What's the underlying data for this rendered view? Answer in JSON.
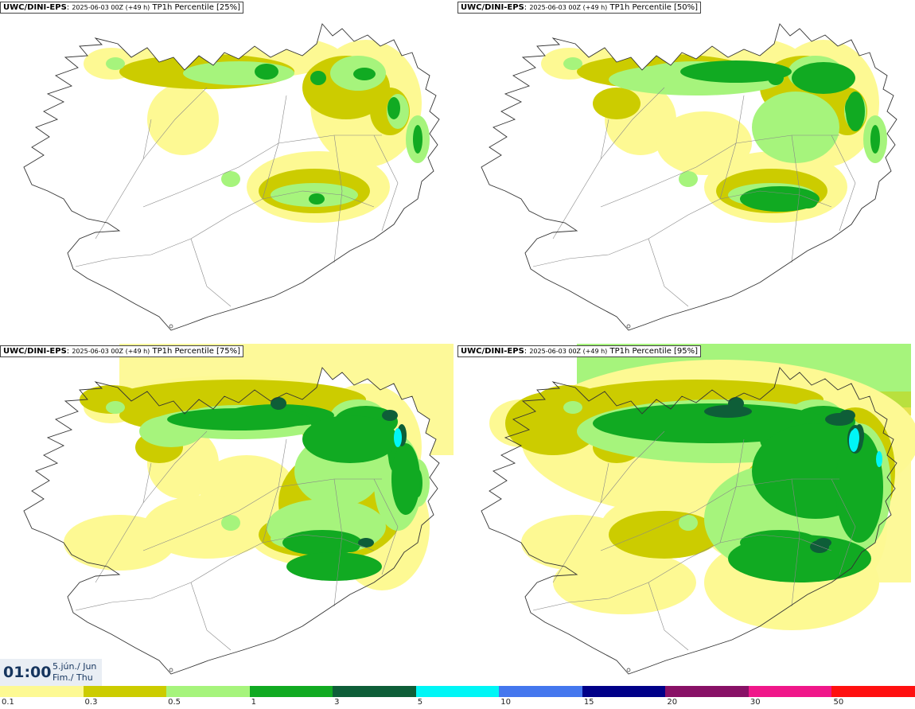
{
  "panels": [
    {
      "model": "UWC/DINI-EPS",
      "run": "2025-06-03 00Z (+49 h)",
      "field": "TP1h Percentile [25%]",
      "level": 0
    },
    {
      "model": "UWC/DINI-EPS",
      "run": "2025-06-03 00Z (+49 h)",
      "field": "TP1h Percentile [50%]",
      "level": 1
    },
    {
      "model": "UWC/DINI-EPS",
      "run": "2025-06-03 00Z (+49 h)",
      "field": "TP1h Percentile [75%]",
      "level": 2
    },
    {
      "model": "UWC/DINI-EPS",
      "run": "2025-06-03 00Z (+49 h)",
      "field": "TP1h Percentile [95%]",
      "level": 3
    }
  ],
  "valid_time": {
    "time": "01:00",
    "date_line1": "5.jún./ Jun",
    "date_line2": "Fim./ Thu"
  },
  "legend": {
    "thresholds": [
      "0.1",
      "0.3",
      "0.5",
      "1",
      "3",
      "5",
      "10",
      "15",
      "20",
      "30",
      "50"
    ],
    "colors": [
      "#fdf993",
      "#cccc00",
      "#a6f47c",
      "#11aa22",
      "#0e5e38",
      "#00f6f6",
      "#4477ee",
      "#000088",
      "#881166",
      "#f0178a",
      "#ff1010"
    ]
  },
  "palette": {
    "land_outline": "#333333",
    "roads": "#888888",
    "p01": "#fdf993",
    "p03": "#cccc00",
    "p05": "#a6f47c",
    "p1": "#11aa22",
    "p3": "#0e5e38",
    "p5": "#00f6f6"
  }
}
